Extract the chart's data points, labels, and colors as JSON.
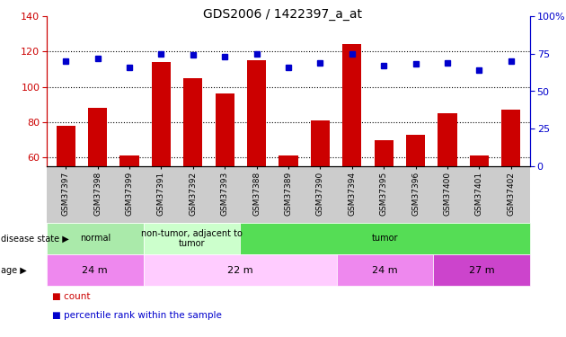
{
  "title": "GDS2006 / 1422397_a_at",
  "samples": [
    "GSM37397",
    "GSM37398",
    "GSM37399",
    "GSM37391",
    "GSM37392",
    "GSM37393",
    "GSM37388",
    "GSM37389",
    "GSM37390",
    "GSM37394",
    "GSM37395",
    "GSM37396",
    "GSM37400",
    "GSM37401",
    "GSM37402"
  ],
  "counts": [
    78,
    88,
    61,
    114,
    105,
    96,
    115,
    61,
    81,
    124,
    70,
    73,
    85,
    61,
    87
  ],
  "percentiles": [
    70,
    72,
    66,
    75,
    74,
    73,
    75,
    66,
    69,
    75,
    67,
    68,
    69,
    64,
    70
  ],
  "ylim_left": [
    55,
    140
  ],
  "ylim_right": [
    0,
    100
  ],
  "yticks_left": [
    60,
    80,
    100,
    120,
    140
  ],
  "yticks_right": [
    0,
    25,
    50,
    75,
    100
  ],
  "bar_color": "#cc0000",
  "dot_color": "#0000cc",
  "disease_state_groups": [
    {
      "label": "normal",
      "start": 0,
      "end": 3,
      "color": "#aaeaaa"
    },
    {
      "label": "non-tumor, adjacent to\ntumor",
      "start": 3,
      "end": 6,
      "color": "#ccffcc"
    },
    {
      "label": "tumor",
      "start": 6,
      "end": 15,
      "color": "#55dd55"
    }
  ],
  "age_groups": [
    {
      "label": "24 m",
      "start": 0,
      "end": 3,
      "color": "#ee88ee"
    },
    {
      "label": "22 m",
      "start": 3,
      "end": 9,
      "color": "#ffccff"
    },
    {
      "label": "24 m",
      "start": 9,
      "end": 12,
      "color": "#ee88ee"
    },
    {
      "label": "27 m",
      "start": 12,
      "end": 15,
      "color": "#cc44cc"
    }
  ],
  "axis_left_color": "#cc0000",
  "axis_right_color": "#0000cc",
  "xtick_bg_color": "#cccccc",
  "fig_bg_color": "#ffffff"
}
